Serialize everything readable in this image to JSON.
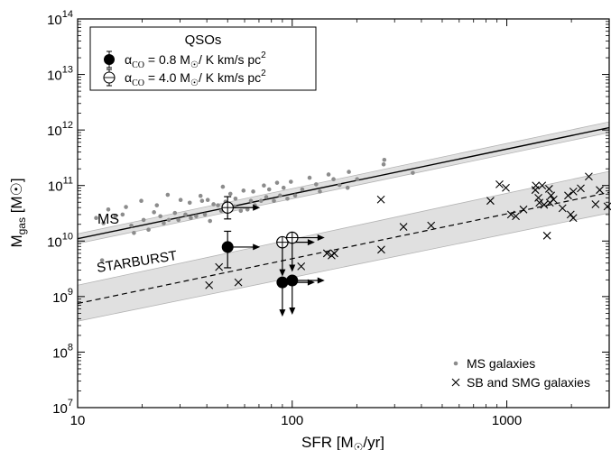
{
  "chart_data": {
    "type": "scatter",
    "x_scale": "log",
    "y_scale": "log",
    "xlim": [
      10,
      3000
    ],
    "ylim": [
      10000000.0,
      100000000000000.0
    ],
    "xlabel": {
      "main": "SFR [M",
      "sub": "☉",
      "end": "/yr]"
    },
    "ylabel": {
      "main": "M",
      "sub": "gas",
      "end": " [M☉]"
    },
    "x_ticks": [
      {
        "value": 10,
        "label": "10"
      },
      {
        "value": 100,
        "label": "100"
      },
      {
        "value": 1000,
        "label": "1000"
      }
    ],
    "y_ticks": [
      {
        "value": 10000000.0,
        "exp": "7"
      },
      {
        "value": 100000000.0,
        "exp": "8"
      },
      {
        "value": 1000000000.0,
        "exp": "9"
      },
      {
        "value": 10000000000.0,
        "exp": "10"
      },
      {
        "value": 100000000000.0,
        "exp": "11"
      },
      {
        "value": 1000000000000.0,
        "exp": "12"
      },
      {
        "value": 10000000000000.0,
        "exp": "13"
      },
      {
        "value": 100000000000000.0,
        "exp": "14"
      }
    ],
    "y_tick_base": "10",
    "relations": {
      "ms": {
        "label": "MS",
        "x": [
          10,
          3000
        ],
        "y": [
          11000000000.0,
          1100000000000.0
        ],
        "band_lo": [
          9000000000.0,
          900000000000.0
        ],
        "band_hi": [
          13500000000.0,
          1400000000000.0
        ]
      },
      "starburst": {
        "label": "STARBURST",
        "x": [
          10,
          3000
        ],
        "y": [
          750000000.0,
          75000000000.0
        ],
        "band_lo": [
          360000000.0,
          32000000000.0
        ],
        "band_hi": [
          1600000000.0,
          180000000000.0
        ]
      }
    },
    "series": [
      {
        "name": "MS galaxies",
        "marker": "dot",
        "color": "#8c8c8c",
        "points": [
          [
            12.2,
            26000000000.0
          ],
          [
            13.2,
            21000000000.0
          ],
          [
            13.0,
            4500000000.0
          ],
          [
            13.9,
            37000000000.0
          ],
          [
            15.0,
            28000000000.0
          ],
          [
            16.2,
            30000000000.0
          ],
          [
            16.8,
            41000000000.0
          ],
          [
            17.8,
            19000000000.0
          ],
          [
            18.3,
            14000000000.0
          ],
          [
            19.8,
            53000000000.0
          ],
          [
            20.3,
            24000000000.0
          ],
          [
            21.4,
            16000000000.0
          ],
          [
            22.7,
            33000000000.0
          ],
          [
            23.4,
            44000000000.0
          ],
          [
            24.3,
            28000000000.0
          ],
          [
            25.2,
            21000000000.0
          ],
          [
            26.3,
            68000000000.0
          ],
          [
            26.6,
            24000000000.0
          ],
          [
            28.4,
            32000000000.0
          ],
          [
            29.5,
            24000000000.0
          ],
          [
            30.2,
            55000000000.0
          ],
          [
            31.8,
            30000000000.0
          ],
          [
            33.3,
            49000000000.0
          ],
          [
            33.7,
            26000000000.0
          ],
          [
            35.7,
            28000000000.0
          ],
          [
            37.4,
            65000000000.0
          ],
          [
            38.0,
            53000000000.0
          ],
          [
            39.2,
            30000000000.0
          ],
          [
            40.4,
            55000000000.0
          ],
          [
            41.4,
            23000000000.0
          ],
          [
            43.0,
            46000000000.0
          ],
          [
            45.1,
            44000000000.0
          ],
          [
            46.7,
            35000000000.0
          ],
          [
            47.5,
            95000000000.0
          ],
          [
            48.9,
            51000000000.0
          ],
          [
            51.5,
            71000000000.0
          ],
          [
            53.9,
            42000000000.0
          ],
          [
            54.4,
            58000000000.0
          ],
          [
            57.6,
            35000000000.0
          ],
          [
            59.3,
            81000000000.0
          ],
          [
            61.9,
            37000000000.0
          ],
          [
            64.2,
            53000000000.0
          ],
          [
            65.8,
            78000000000.0
          ],
          [
            67.0,
            44000000000.0
          ],
          [
            71.6,
            53000000000.0
          ],
          [
            73.8,
            100000000000.0
          ],
          [
            75.7,
            62000000000.0
          ],
          [
            78.1,
            85000000000.0
          ],
          [
            82.2,
            53000000000.0
          ],
          [
            85.0,
            112000000000.0
          ],
          [
            87.8,
            66000000000.0
          ],
          [
            91.2,
            91000000000.0
          ],
          [
            95.0,
            58000000000.0
          ],
          [
            98.6,
            117000000000.0
          ],
          [
            103.2,
            66000000000.0
          ],
          [
            111.4,
            85000000000.0
          ],
          [
            120.5,
            138000000000.0
          ],
          [
            129.3,
            105000000000.0
          ],
          [
            134.6,
            78000000000.0
          ],
          [
            147.7,
            158000000000.0
          ],
          [
            155.8,
            130000000000.0
          ],
          [
            166.1,
            102000000000.0
          ],
          [
            181.2,
            91000000000.0
          ],
          [
            183.7,
            176000000000.0
          ],
          [
            200.7,
            130000000000.0
          ],
          [
            268.6,
            290000000000.0
          ],
          [
            266.7,
            240000000000.0
          ],
          [
            364.8,
            169000000000.0
          ]
        ]
      },
      {
        "name": "SB and SMG galaxies",
        "marker": "x",
        "color": "#000000",
        "points": [
          [
            41.0,
            1600000000.0
          ],
          [
            45.6,
            3400000000.0
          ],
          [
            56.1,
            1800000000.0
          ],
          [
            110.1,
            3500000000.0
          ],
          [
            145.2,
            6000000000.0
          ],
          [
            152.6,
            5500000000.0
          ],
          [
            157.1,
            6000000000.0
          ],
          [
            259.1,
            56000000000.0
          ],
          [
            260.0,
            7000000000.0
          ],
          [
            330.1,
            18000000000.0
          ],
          [
            444.0,
            19000000000.0
          ],
          [
            838.8,
            53000000000.0
          ],
          [
            924.6,
            105000000000.0
          ],
          [
            989.9,
            91000000000.0
          ],
          [
            1046.5,
            30000000000.0
          ],
          [
            1101.8,
            28000000000.0
          ],
          [
            1196.0,
            37000000000.0
          ],
          [
            1365.3,
            100000000000.0
          ],
          [
            1358.5,
            83000000000.0
          ],
          [
            1403.7,
            60000000000.0
          ],
          [
            1419.0,
            49000000000.0
          ],
          [
            1461.4,
            100000000000.0
          ],
          [
            1492.0,
            45000000000.0
          ],
          [
            1540.0,
            12500000000.0
          ],
          [
            1573.7,
            87000000000.0
          ],
          [
            1608.3,
            66000000000.0
          ],
          [
            1587.0,
            49000000000.0
          ],
          [
            1651.6,
            56000000000.0
          ],
          [
            1817.7,
            39000000000.0
          ],
          [
            1930.2,
            66000000000.0
          ],
          [
            1984.6,
            30000000000.0
          ],
          [
            2039.9,
            26000000000.0
          ],
          [
            2042.2,
            78000000000.0
          ],
          [
            2211.4,
            89000000000.0
          ],
          [
            2410.5,
            145000000000.0
          ],
          [
            2590.7,
            46000000000.0
          ],
          [
            2710.4,
            83000000000.0
          ],
          [
            2945.1,
            42000000000.0
          ]
        ]
      },
      {
        "name": "QSOs αCO=0.8",
        "marker": "filled-circle",
        "color": "#000000",
        "points": [
          {
            "x": 50,
            "y": 7800000000.0,
            "err_lo": 3300000000.0,
            "err_hi": 15000000000.0,
            "arrow_right": true,
            "arrow_down": false
          },
          {
            "x": 90,
            "y": 1800000000.0,
            "arrow_right": true,
            "arrow_down": true
          },
          {
            "x": 100,
            "y": 1950000000.0,
            "arrow_right": true,
            "arrow_down": true
          }
        ]
      },
      {
        "name": "QSOs αCO=4.0",
        "marker": "open-circle",
        "color": "#000000",
        "points": [
          {
            "x": 50,
            "y": 40000000000.0,
            "err_lo": 25000000000.0,
            "err_hi": 63000000000.0,
            "arrow_right": true,
            "arrow_down": false
          },
          {
            "x": 90,
            "y": 9500000000.0,
            "arrow_right": true,
            "arrow_down": true
          },
          {
            "x": 100,
            "y": 11500000000.0,
            "arrow_right": true,
            "arrow_down": true
          }
        ]
      }
    ],
    "legend_top": {
      "title": "QSOs",
      "placement": "top-left",
      "entries": [
        {
          "marker": "filled-circle",
          "prefix": "α",
          "sub": "CO",
          "value": " = 0.8 M",
          "unit_sub": "☉",
          "unit": "/ K km/s pc",
          "sup": "2"
        },
        {
          "marker": "open-circle",
          "prefix": "α",
          "sub": "CO",
          "value": " = 4.0  M",
          "unit_sub": "☉",
          "unit": "/ K km/s pc",
          "sup": "2"
        }
      ]
    },
    "legend_bottom": {
      "placement": "bottom-right",
      "entries": [
        {
          "marker": "dot",
          "text": "MS galaxies"
        },
        {
          "marker": "x",
          "text": "SB and SMG galaxies"
        }
      ]
    },
    "colors": {
      "band": "#e0e0e0",
      "band_edge": "#b4b4b4",
      "ms_dot": "#8c8c8c",
      "axis": "#000000"
    }
  }
}
